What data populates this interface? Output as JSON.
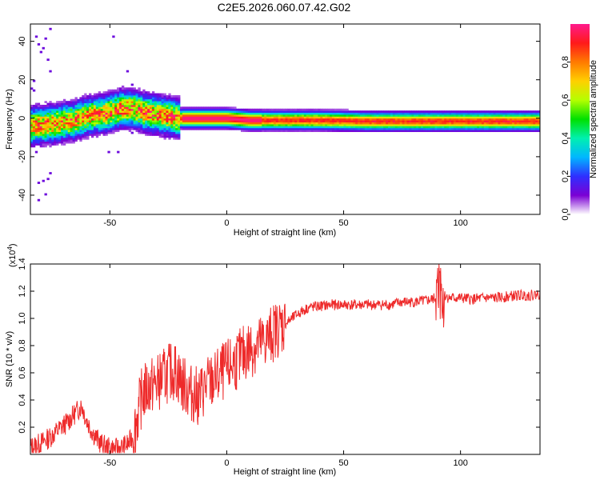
{
  "title": "C2E5.2026.060.07.42.G02",
  "colors": {
    "snr_line": "#ee2a2a",
    "axis": "#000000"
  },
  "chart_data": [
    {
      "type": "heatmap",
      "title": "C2E5.2026.060.07.42.G02",
      "xlabel": "Height of straight line (km)",
      "ylabel": "Frequency (Hz)",
      "xlim": [
        -84,
        134
      ],
      "ylim": [
        -50,
        49
      ],
      "xticks": [
        -50,
        0,
        50,
        100
      ],
      "yticks": [
        -40,
        -20,
        0,
        20,
        40
      ],
      "xtick_labels": [
        "-50",
        "0",
        "50",
        "100"
      ],
      "ytick_labels": [
        "-40",
        "-20",
        "0",
        "20",
        "40"
      ],
      "center_frequency": {
        "x": [
          -84,
          -75,
          -70,
          -65,
          -60,
          -55,
          -50,
          -45,
          -40,
          -35,
          -30,
          -25,
          -20,
          -10,
          0,
          10,
          20,
          40,
          60,
          80,
          100,
          120,
          134
        ],
        "y": [
          -4,
          -3,
          -2,
          -1,
          1,
          2,
          3,
          5,
          5,
          3,
          2,
          1,
          0,
          0,
          0,
          -1,
          -1,
          -1,
          -1.5,
          -1.5,
          -1.5,
          -1.5,
          -1.5
        ]
      },
      "colorbar": {
        "label": "Normalized spectral amplitude",
        "range": [
          0,
          1
        ],
        "ticks": [
          0.0,
          0.2,
          0.4,
          0.6,
          0.8
        ],
        "tick_labels": [
          "0.0",
          "0.2",
          "0.4",
          "0.6",
          "0.8"
        ],
        "colormap": [
          "#ffffff",
          "#7b00d4",
          "#2f2fff",
          "#00b7ff",
          "#00f0b0",
          "#00e000",
          "#b4ff00",
          "#ffd000",
          "#ff7a00",
          "#ff1a1a",
          "#ff1a8c"
        ]
      }
    },
    {
      "type": "line",
      "xlabel": "Height of straight line (km)",
      "ylabel": "SNR (10 * v/v)",
      "y_multiplier": "(x10^4)",
      "y_multiplier_base": "(x10",
      "y_multiplier_exp": "4",
      "y_multiplier_close": ")",
      "xlim": [
        -84,
        134
      ],
      "ylim": [
        0,
        1.4
      ],
      "xticks": [
        -50,
        0,
        50,
        100
      ],
      "yticks": [
        0.2,
        0.4,
        0.6,
        0.8,
        1.0,
        1.2,
        1.4
      ],
      "xtick_labels": [
        "-50",
        "0",
        "50",
        "100"
      ],
      "ytick_labels": [
        "0.2",
        "0.4",
        "0.6",
        "0.8",
        "1.0",
        "1.2",
        "1.4"
      ],
      "series": [
        {
          "name": "SNR",
          "x": [
            -84,
            -80,
            -76,
            -72,
            -68,
            -65,
            -62,
            -60,
            -57,
            -54,
            -51,
            -48,
            -45,
            -42,
            -40,
            -38,
            -36,
            -33,
            -30,
            -28,
            -25,
            -22,
            -20,
            -18,
            -15,
            -12,
            -10,
            -8,
            -5,
            -2,
            0,
            2,
            5,
            8,
            10,
            13,
            15,
            18,
            20,
            22,
            25,
            28,
            30,
            33,
            35,
            40,
            45,
            50,
            55,
            60,
            65,
            70,
            75,
            80,
            85,
            88,
            90,
            91,
            92,
            93,
            95,
            100,
            105,
            110,
            115,
            120,
            125,
            130,
            134
          ],
          "y": [
            0.05,
            0.08,
            0.12,
            0.18,
            0.24,
            0.3,
            0.36,
            0.25,
            0.15,
            0.08,
            0.05,
            0.04,
            0.05,
            0.08,
            0.14,
            0.3,
            0.45,
            0.5,
            0.52,
            0.55,
            0.6,
            0.62,
            0.55,
            0.5,
            0.45,
            0.42,
            0.48,
            0.52,
            0.55,
            0.6,
            0.62,
            0.66,
            0.7,
            0.75,
            0.78,
            0.8,
            0.82,
            0.86,
            0.9,
            0.93,
            0.96,
            1.0,
            1.03,
            1.06,
            1.08,
            1.09,
            1.1,
            1.1,
            1.1,
            1.1,
            1.1,
            1.1,
            1.12,
            1.12,
            1.13,
            1.14,
            1.16,
            1.3,
            1.1,
            1.17,
            1.15,
            1.15,
            1.14,
            1.15,
            1.15,
            1.16,
            1.17,
            1.17,
            1.18
          ]
        }
      ]
    }
  ]
}
